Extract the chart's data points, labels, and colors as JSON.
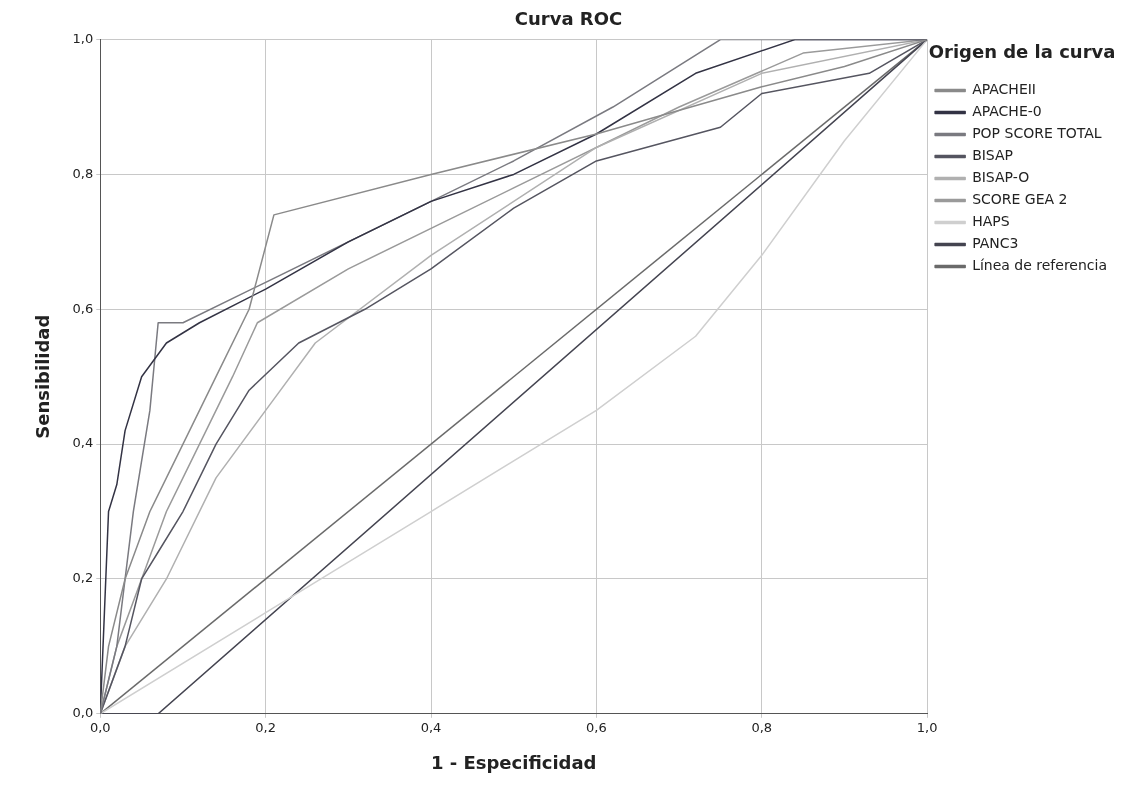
{
  "chart_data": {
    "type": "line",
    "title": "Curva ROC",
    "xlabel": "1 - Especificidad",
    "ylabel": "Sensibilidad",
    "legend_title": "Origen de la curva",
    "xlim": [
      0,
      1
    ],
    "ylim": [
      0,
      1
    ],
    "xticks": [
      {
        "value": 0,
        "label": "0,0"
      },
      {
        "value": 0.2,
        "label": "0,2"
      },
      {
        "value": 0.4,
        "label": "0,4"
      },
      {
        "value": 0.6,
        "label": "0,6"
      },
      {
        "value": 0.8,
        "label": "0,8"
      },
      {
        "value": 1,
        "label": "1,0"
      }
    ],
    "yticks": [
      {
        "value": 0,
        "label": "0,0"
      },
      {
        "value": 0.2,
        "label": "0,2"
      },
      {
        "value": 0.4,
        "label": "0,4"
      },
      {
        "value": 0.6,
        "label": "0,6"
      },
      {
        "value": 0.8,
        "label": "0,8"
      },
      {
        "value": 1,
        "label": "1,0"
      }
    ],
    "grid": true,
    "legend": "right",
    "marker": "none",
    "line_style": "solid",
    "series": [
      {
        "name": "APACHEII",
        "color": "#8a8a8a",
        "x": [
          0,
          0.01,
          0.03,
          0.06,
          0.1,
          0.14,
          0.18,
          0.21,
          0.4,
          0.6,
          0.8,
          0.9,
          1
        ],
        "values": [
          0,
          0.1,
          0.2,
          0.3,
          0.4,
          0.5,
          0.6,
          0.74,
          0.8,
          0.86,
          0.93,
          0.96,
          1
        ]
      },
      {
        "name": "APACHE-0",
        "color": "#333344",
        "x": [
          0,
          0.005,
          0.01,
          0.02,
          0.03,
          0.05,
          0.08,
          0.12,
          0.2,
          0.3,
          0.4,
          0.5,
          0.6,
          0.72,
          0.84,
          1
        ],
        "values": [
          0,
          0.15,
          0.3,
          0.34,
          0.42,
          0.5,
          0.55,
          0.58,
          0.63,
          0.7,
          0.76,
          0.8,
          0.86,
          0.95,
          1,
          1
        ]
      },
      {
        "name": "POP SCORE TOTAL",
        "color": "#7a7a80",
        "x": [
          0,
          0.02,
          0.04,
          0.06,
          0.07,
          0.1,
          0.2,
          0.35,
          0.5,
          0.62,
          0.75,
          1
        ],
        "values": [
          0,
          0.1,
          0.3,
          0.45,
          0.58,
          0.58,
          0.64,
          0.73,
          0.82,
          0.9,
          1,
          1
        ]
      },
      {
        "name": "BISAP",
        "color": "#555560",
        "x": [
          0,
          0.03,
          0.05,
          0.07,
          0.1,
          0.14,
          0.18,
          0.24,
          0.32,
          0.4,
          0.5,
          0.6,
          0.75,
          0.8,
          0.93,
          1
        ],
        "values": [
          0,
          0.1,
          0.2,
          0.24,
          0.3,
          0.4,
          0.48,
          0.55,
          0.6,
          0.66,
          0.75,
          0.82,
          0.87,
          0.92,
          0.95,
          1
        ]
      },
      {
        "name": "BISAP-O",
        "color": "#b0b0b0",
        "x": [
          0,
          0.03,
          0.08,
          0.14,
          0.2,
          0.26,
          0.4,
          0.6,
          0.8,
          1
        ],
        "values": [
          0,
          0.1,
          0.2,
          0.35,
          0.45,
          0.55,
          0.68,
          0.84,
          0.95,
          1
        ]
      },
      {
        "name": "SCORE GEA 2",
        "color": "#9a9a9a",
        "x": [
          0,
          0.02,
          0.05,
          0.08,
          0.12,
          0.16,
          0.19,
          0.3,
          0.5,
          0.7,
          0.85,
          1
        ],
        "values": [
          0,
          0.1,
          0.2,
          0.3,
          0.4,
          0.5,
          0.58,
          0.66,
          0.78,
          0.9,
          0.98,
          1
        ]
      },
      {
        "name": "HAPS",
        "color": "#cfcfcf",
        "x": [
          0,
          0.2,
          0.4,
          0.6,
          0.72,
          0.8,
          0.9,
          1
        ],
        "values": [
          0,
          0.15,
          0.3,
          0.45,
          0.56,
          0.68,
          0.85,
          1
        ]
      },
      {
        "name": "PANC3",
        "color": "#444450",
        "x": [
          0,
          0.07,
          1
        ],
        "values": [
          0,
          0,
          1
        ]
      },
      {
        "name": "Línea de referencia",
        "color": "#6a6a6a",
        "x": [
          0,
          1
        ],
        "values": [
          0,
          1
        ]
      }
    ]
  }
}
